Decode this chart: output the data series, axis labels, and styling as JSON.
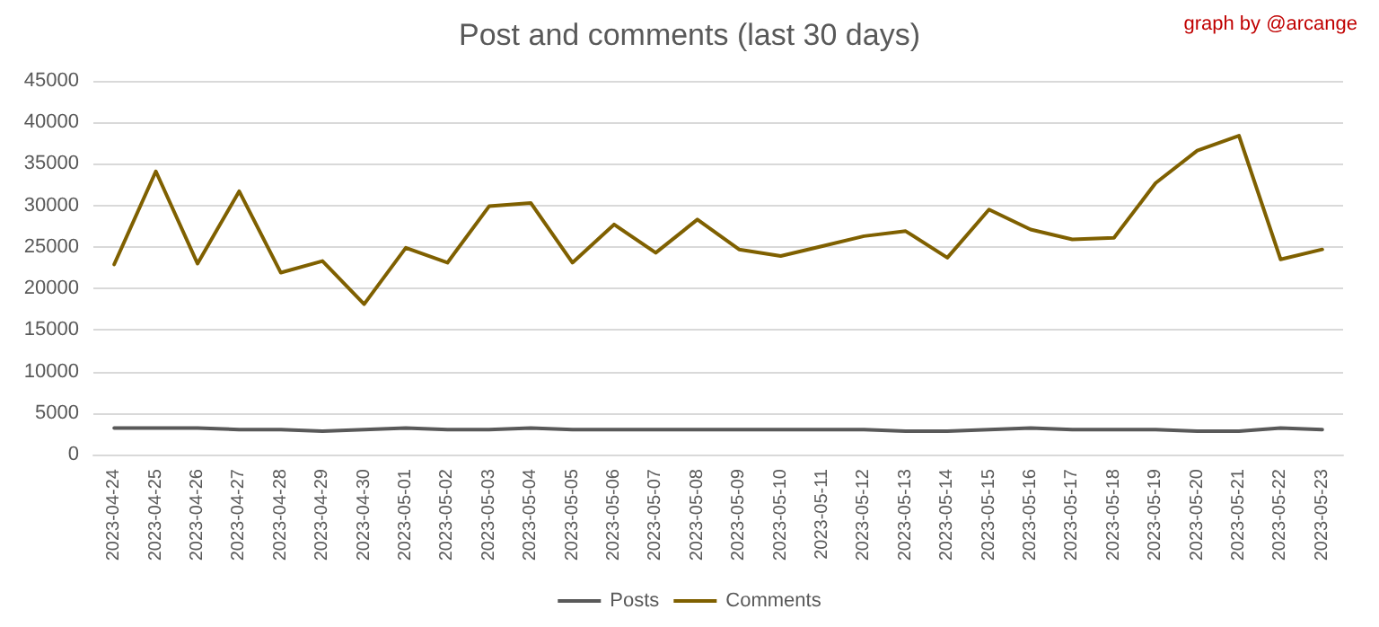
{
  "chart_data": {
    "type": "line",
    "title": "Post and comments (last 30 days)",
    "annotations": [
      "graph by @arcange"
    ],
    "categories": [
      "2023-04-24",
      "2023-04-25",
      "2023-04-26",
      "2023-04-27",
      "2023-04-28",
      "2023-04-29",
      "2023-04-30",
      "2023-05-01",
      "2023-05-02",
      "2023-05-03",
      "2023-05-04",
      "2023-05-05",
      "2023-05-06",
      "2023-05-07",
      "2023-05-08",
      "2023-05-09",
      "2023-05-10",
      "2023-05-11",
      "2023-05-12",
      "2023-05-13",
      "2023-05-14",
      "2023-05-15",
      "2023-05-16",
      "2023-05-17",
      "2023-05-18",
      "2023-05-19",
      "2023-05-20",
      "2023-05-21",
      "2023-05-22",
      "2023-05-23"
    ],
    "series": [
      {
        "name": "Posts",
        "color": "#595959",
        "values": [
          3200,
          3200,
          3200,
          3000,
          3000,
          2800,
          3000,
          3200,
          3000,
          3000,
          3200,
          3000,
          3000,
          3000,
          3000,
          3000,
          3000,
          3000,
          3000,
          2800,
          2800,
          3000,
          3200,
          3000,
          3000,
          3000,
          2800,
          2800,
          3200,
          3000
        ]
      },
      {
        "name": "Comments",
        "color": "#7f6000",
        "values": [
          22900,
          34100,
          23000,
          31700,
          21900,
          23300,
          18100,
          24900,
          23100,
          29900,
          30300,
          23100,
          27700,
          24300,
          28300,
          24700,
          23900,
          25100,
          26300,
          26900,
          23700,
          29500,
          27100,
          25900,
          26100,
          32700,
          36600,
          38400,
          23500,
          24700
        ]
      }
    ],
    "ylim": [
      0,
      45000
    ],
    "yticks": [
      0,
      5000,
      10000,
      15000,
      20000,
      25000,
      30000,
      35000,
      40000,
      45000
    ],
    "grid": "y",
    "legend": "bottom",
    "marker": "none",
    "line_style": "solid"
  }
}
